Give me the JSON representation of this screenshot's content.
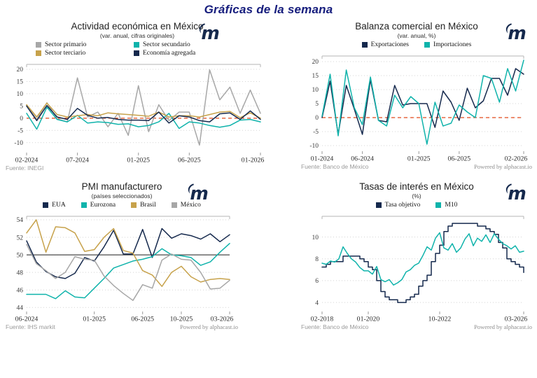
{
  "header": {
    "title": "Gráficas de la semana"
  },
  "colors": {
    "brand_navy": "#15294d",
    "teal": "#0fb3ab",
    "tan": "#c7a24b",
    "gray": "#a7a7a7",
    "zero_line_red": "#e2491b",
    "title_blue": "#161d7d"
  },
  "chart_data": [
    {
      "type": "line",
      "title": "Actividad económica en México",
      "subtitle": "(var. anual, cifras originales)",
      "source": "Fuente: INEGI",
      "powered_by": "",
      "x_ticks": [
        "02-2024",
        "07-2024",
        "01-2025",
        "06-2025",
        "01-2026"
      ],
      "x_tick_index": [
        0,
        5,
        11,
        16,
        23
      ],
      "ylim": [
        -13.5,
        22
      ],
      "yticks": [
        -10,
        -5,
        0,
        5,
        10,
        15,
        20
      ],
      "refline": {
        "y": 0,
        "color": "#e2491b",
        "dash": "5,4"
      },
      "series": [
        {
          "name": "Sector primario",
          "color": "#a7a7a7",
          "values": [
            5.3,
            -0.5,
            6.3,
            -0.3,
            -1.5,
            16.5,
            0.5,
            2.5,
            -3.5,
            2.0,
            -7.0,
            13.3,
            -5.5,
            5.5,
            -1.0,
            2.5,
            2.5,
            -11.0,
            19.8,
            7.5,
            12.7,
            2.0,
            11.5,
            2.0
          ]
        },
        {
          "name": "Sector secundario",
          "color": "#0fb3ab",
          "values": [
            2.0,
            -4.5,
            4.5,
            -0.5,
            -1.5,
            1.2,
            -2.0,
            -1.5,
            -1.8,
            -2.5,
            -2.3,
            -3.5,
            -3.0,
            -1.5,
            2.0,
            -4.2,
            -1.5,
            -2.0,
            -3.0,
            -3.7,
            -3.0,
            -0.8,
            -0.5,
            -1.5
          ]
        },
        {
          "name": "Sector terciario",
          "color": "#c7a24b",
          "values": [
            5.5,
            0.5,
            6.2,
            1.5,
            0.5,
            1.0,
            1.5,
            1.0,
            2.2,
            1.8,
            1.5,
            1.2,
            0.8,
            2.5,
            0.5,
            1.0,
            1.0,
            0.5,
            1.5,
            2.5,
            2.8,
            0.2,
            2.2,
            0.0
          ]
        },
        {
          "name": "Economía agregada",
          "color": "#15294d",
          "values": [
            5.0,
            -1.0,
            5.2,
            0.5,
            -0.5,
            4.0,
            1.2,
            0.0,
            0.3,
            -0.5,
            -0.8,
            -0.8,
            -1.0,
            2.5,
            -2.0,
            1.0,
            0.5,
            -1.0,
            -1.5,
            1.8,
            2.2,
            -0.5,
            3.0,
            -0.5
          ]
        }
      ]
    },
    {
      "type": "line",
      "title": "Balanza comercial en México",
      "subtitle": "(var. anual, %)",
      "source": "Fuente: Banco de México",
      "powered_by": "Powered by alphacast.io",
      "x_ticks": [
        "01-2024",
        "06-2024",
        "01-2025",
        "06-2025",
        "02-2026"
      ],
      "x_tick_index": [
        0,
        5,
        12,
        17,
        25
      ],
      "ylim": [
        -11.5,
        22
      ],
      "yticks": [
        -10,
        -5,
        0,
        5,
        10,
        15,
        20
      ],
      "refline": {
        "y": 0,
        "color": "#e2491b",
        "dash": "5,4"
      },
      "series": [
        {
          "name": "Exportaciones",
          "color": "#15294d",
          "values": [
            0,
            13,
            -6,
            11.5,
            3,
            -6,
            13.5,
            -1,
            -1.5,
            11.5,
            4.5,
            5,
            5,
            5,
            -3.5,
            9.5,
            5.5,
            -1,
            10.5,
            3.5,
            6,
            14,
            14,
            8,
            17.5,
            15.5
          ]
        },
        {
          "name": "Importaciones",
          "color": "#0fb3ab",
          "values": [
            0.5,
            15.5,
            -6.5,
            17,
            3.5,
            -2.5,
            14.5,
            -1,
            -3,
            8,
            3.5,
            7.5,
            5,
            -9.5,
            5.5,
            -3,
            -2,
            4.5,
            2,
            0,
            15,
            14,
            5.5,
            17.5,
            9.5,
            20.5
          ]
        }
      ]
    },
    {
      "type": "line",
      "title": "PMI manufacturero",
      "subtitle": "(países seleccionados)",
      "source": "Fuente: IHS markit",
      "powered_by": "Powered by alphacast.io",
      "x_ticks": [
        "06-2024",
        "01-2025",
        "06-2025",
        "10-2025",
        "03-2026"
      ],
      "x_tick_index": [
        0,
        7,
        12,
        16,
        21
      ],
      "ylim": [
        43.7,
        54.4
      ],
      "yticks": [
        44,
        46,
        48,
        50,
        52,
        54
      ],
      "refline": {
        "y": 50,
        "color": "#4a4a4a",
        "dash": ""
      },
      "series": [
        {
          "name": "EUA",
          "color": "#15294d",
          "values": [
            51.6,
            49.2,
            48.1,
            47.5,
            47.3,
            47.9,
            49.7,
            49.3,
            50.9,
            52.8,
            50.1,
            50.1,
            52.9,
            49.7,
            53.0,
            51.9,
            52.4,
            52.2,
            51.8,
            52.4,
            51.5,
            52.3
          ]
        },
        {
          "name": "Eurozona",
          "color": "#0fb3ab",
          "values": [
            45.5,
            45.5,
            45.5,
            45.0,
            45.9,
            45.2,
            45.1,
            46.2,
            47.3,
            48.5,
            48.9,
            49.3,
            49.5,
            49.8,
            50.7,
            50.0,
            49.9,
            49.7,
            48.8,
            49.2,
            50.3,
            51.3
          ]
        },
        {
          "name": "Brasil",
          "color": "#c7a24b",
          "values": [
            52.5,
            54.0,
            50.3,
            53.2,
            53.1,
            52.5,
            50.4,
            50.6,
            52.0,
            53.0,
            50.5,
            50.2,
            48.2,
            47.7,
            46.4,
            48.0,
            48.7,
            47.5,
            46.9,
            47.2,
            47.3,
            47.2
          ]
        },
        {
          "name": "México",
          "color": "#a7a7a7",
          "values": [
            51.2,
            49.0,
            48.2,
            47.3,
            48.0,
            49.8,
            49.5,
            49.4,
            47.6,
            46.5,
            45.6,
            44.8,
            46.6,
            46.2,
            49.4,
            50.1,
            49.5,
            49.4,
            48.0,
            46.1,
            46.2,
            47.1
          ]
        }
      ]
    },
    {
      "type": "line",
      "title": "Tasas de interés en México",
      "subtitle": "(%)",
      "source": "Fuente: Banco de México",
      "powered_by": "Powered by alphacast.io",
      "x_ticks": [
        "02-2018",
        "01-2020",
        "10-2022",
        "03-2026"
      ],
      "x_tick_index": [
        0,
        11,
        28,
        48
      ],
      "ylim": [
        3.3,
        11.9
      ],
      "yticks": [
        4,
        6,
        8,
        10
      ],
      "refline": null,
      "series": [
        {
          "name": "Tasa objetivo",
          "color": "#15294d",
          "step": true,
          "values": [
            7.25,
            7.5,
            7.75,
            7.75,
            7.75,
            8.25,
            8.25,
            8.25,
            8.25,
            8.0,
            7.75,
            7.25,
            7.0,
            6.0,
            5.0,
            4.5,
            4.25,
            4.25,
            4.0,
            4.0,
            4.25,
            4.5,
            4.75,
            5.5,
            6.0,
            6.5,
            7.75,
            8.5,
            9.25,
            10.5,
            11.0,
            11.25,
            11.25,
            11.25,
            11.25,
            11.25,
            11.25,
            11.0,
            11.0,
            10.75,
            10.5,
            10.25,
            9.5,
            9.0,
            8.0,
            7.75,
            7.5,
            7.25,
            6.75
          ]
        },
        {
          "name": "M10",
          "color": "#0fb3ab",
          "values": [
            7.6,
            7.5,
            7.8,
            7.7,
            8.0,
            9.1,
            8.5,
            8.0,
            7.7,
            7.2,
            6.9,
            6.9,
            6.6,
            7.3,
            6.1,
            5.9,
            6.1,
            5.6,
            5.8,
            6.1,
            6.8,
            7.0,
            7.4,
            7.6,
            8.3,
            9.1,
            8.8,
            9.9,
            10.4,
            9.0,
            8.8,
            9.4,
            8.6,
            9.0,
            9.8,
            10.3,
            9.2,
            9.9,
            9.6,
            10.2,
            9.5,
            10.3,
            9.8,
            9.4,
            9.2,
            8.9,
            9.2,
            8.6,
            8.7
          ]
        }
      ]
    }
  ]
}
